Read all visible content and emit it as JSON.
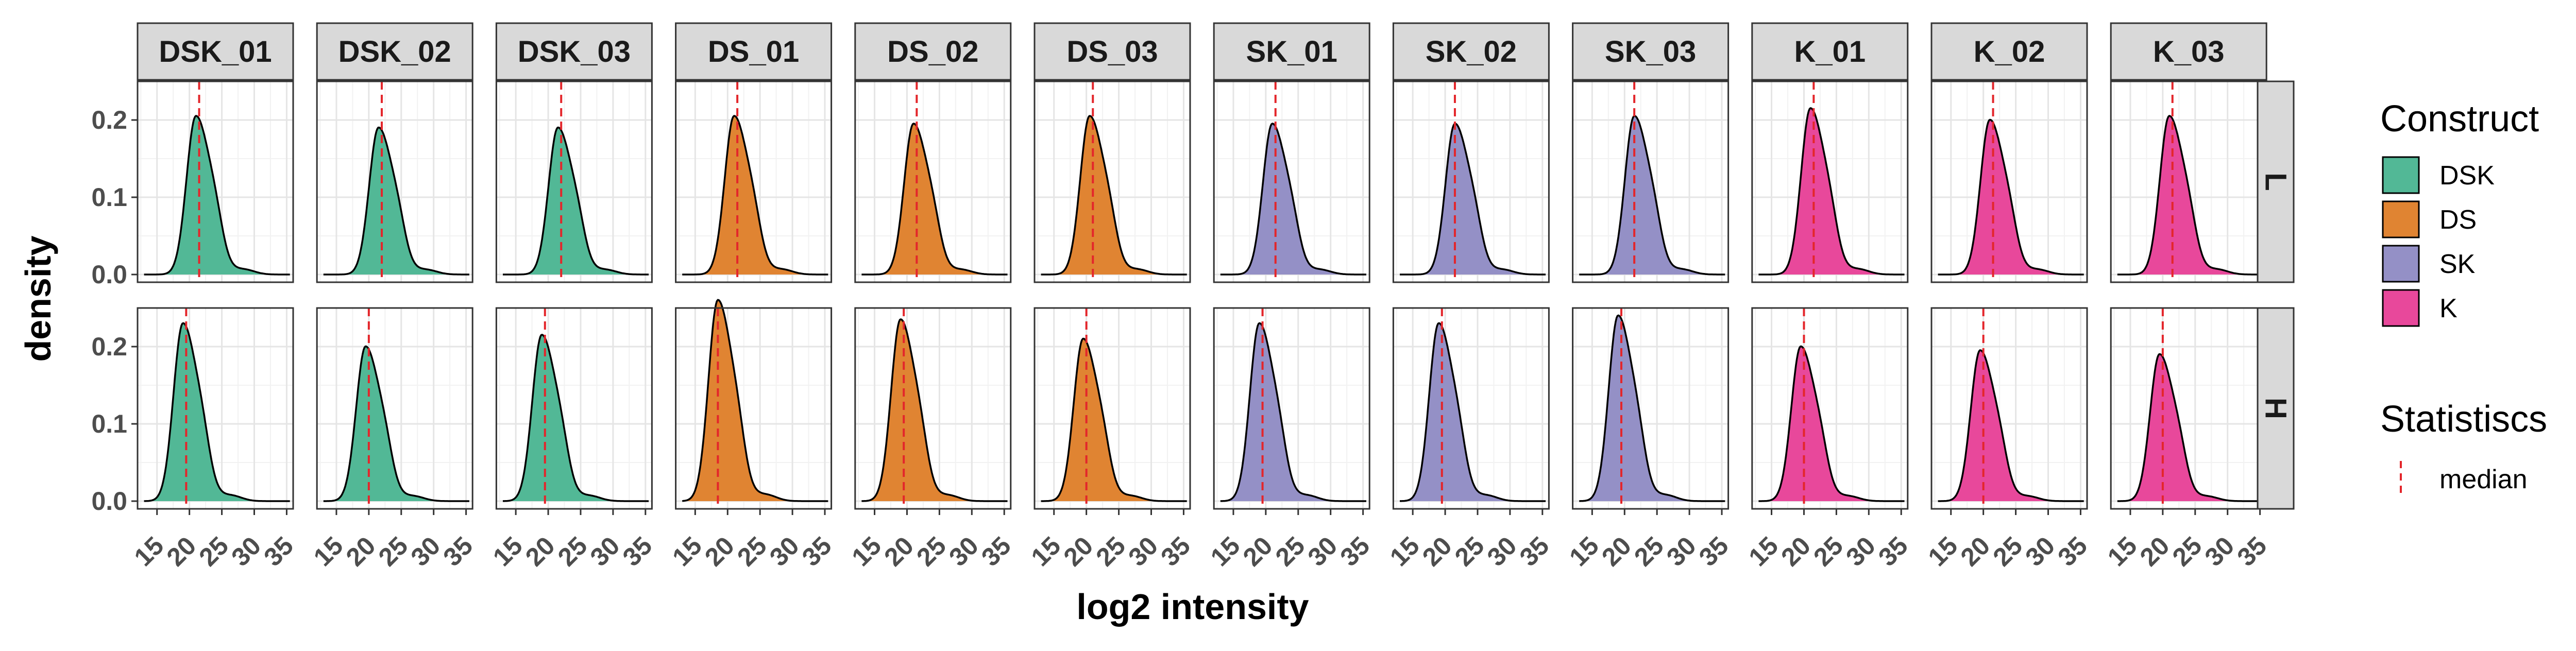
{
  "chart_data": {
    "type": "area",
    "facet_columns": [
      "DSK_01",
      "DSK_02",
      "DSK_03",
      "DS_01",
      "DS_02",
      "DS_03",
      "SK_01",
      "SK_02",
      "SK_03",
      "K_01",
      "K_02",
      "K_03"
    ],
    "facet_rows": [
      "L",
      "H"
    ],
    "column_construct": [
      "DSK",
      "DSK",
      "DSK",
      "DS",
      "DS",
      "DS",
      "SK",
      "SK",
      "SK",
      "K",
      "K",
      "K"
    ],
    "xlabel": "log2 intensity",
    "ylabel": "density",
    "xlim": [
      12,
      36
    ],
    "ylim": [
      -0.01,
      0.25
    ],
    "x_ticks": [
      15,
      20,
      25,
      30,
      35
    ],
    "y_ticks": [
      0.0,
      0.1,
      0.2
    ],
    "y_tick_labels": [
      "0.0",
      "0.1",
      "0.2"
    ],
    "grid": true,
    "legend_position": "right",
    "legend": {
      "construct_title": "Construct",
      "constructs": [
        {
          "name": "DSK",
          "color": "#52b896"
        },
        {
          "name": "DS",
          "color": "#e08432"
        },
        {
          "name": "SK",
          "color": "#9490c6"
        },
        {
          "name": "K",
          "color": "#e8489b"
        }
      ],
      "statistics_title": "Statistiscs",
      "statistics": [
        {
          "name": "median",
          "color": "#e3262b",
          "linetype": "dashed"
        }
      ]
    },
    "panels": [
      {
        "row": "L",
        "column": "DSK_01",
        "peak_x": 21.0,
        "peak_density": 0.205,
        "median": 21.5
      },
      {
        "row": "L",
        "column": "DSK_02",
        "peak_x": 21.5,
        "peak_density": 0.19,
        "median": 22.0
      },
      {
        "row": "L",
        "column": "DSK_03",
        "peak_x": 21.5,
        "peak_density": 0.19,
        "median": 22.0
      },
      {
        "row": "L",
        "column": "DS_01",
        "peak_x": 21.0,
        "peak_density": 0.205,
        "median": 21.5
      },
      {
        "row": "L",
        "column": "DS_02",
        "peak_x": 21.0,
        "peak_density": 0.195,
        "median": 21.5
      },
      {
        "row": "L",
        "column": "DS_03",
        "peak_x": 20.5,
        "peak_density": 0.205,
        "median": 21.0
      },
      {
        "row": "L",
        "column": "SK_01",
        "peak_x": 21.0,
        "peak_density": 0.195,
        "median": 21.5
      },
      {
        "row": "L",
        "column": "SK_02",
        "peak_x": 21.5,
        "peak_density": 0.195,
        "median": 21.5
      },
      {
        "row": "L",
        "column": "SK_03",
        "peak_x": 21.5,
        "peak_density": 0.205,
        "median": 21.5
      },
      {
        "row": "L",
        "column": "K_01",
        "peak_x": 21.0,
        "peak_density": 0.215,
        "median": 21.5
      },
      {
        "row": "L",
        "column": "K_02",
        "peak_x": 21.0,
        "peak_density": 0.2,
        "median": 21.5
      },
      {
        "row": "L",
        "column": "K_03",
        "peak_x": 21.0,
        "peak_density": 0.205,
        "median": 21.5
      },
      {
        "row": "H",
        "column": "DSK_01",
        "peak_x": 19.0,
        "peak_density": 0.23,
        "median": 19.5
      },
      {
        "row": "H",
        "column": "DSK_02",
        "peak_x": 19.5,
        "peak_density": 0.2,
        "median": 20.0
      },
      {
        "row": "H",
        "column": "DSK_03",
        "peak_x": 19.0,
        "peak_density": 0.215,
        "median": 19.5
      },
      {
        "row": "H",
        "column": "DS_01",
        "peak_x": 18.5,
        "peak_density": 0.26,
        "median": 18.5
      },
      {
        "row": "H",
        "column": "DS_02",
        "peak_x": 19.0,
        "peak_density": 0.235,
        "median": 19.5
      },
      {
        "row": "H",
        "column": "DS_03",
        "peak_x": 19.5,
        "peak_density": 0.21,
        "median": 20.0
      },
      {
        "row": "H",
        "column": "SK_01",
        "peak_x": 19.0,
        "peak_density": 0.23,
        "median": 19.5
      },
      {
        "row": "H",
        "column": "SK_02",
        "peak_x": 19.0,
        "peak_density": 0.23,
        "median": 19.5
      },
      {
        "row": "H",
        "column": "SK_03",
        "peak_x": 19.0,
        "peak_density": 0.24,
        "median": 19.5
      },
      {
        "row": "H",
        "column": "K_01",
        "peak_x": 19.5,
        "peak_density": 0.2,
        "median": 20.0
      },
      {
        "row": "H",
        "column": "K_02",
        "peak_x": 19.5,
        "peak_density": 0.195,
        "median": 20.0
      },
      {
        "row": "H",
        "column": "K_03",
        "peak_x": 19.5,
        "peak_density": 0.19,
        "median": 20.0
      }
    ]
  }
}
